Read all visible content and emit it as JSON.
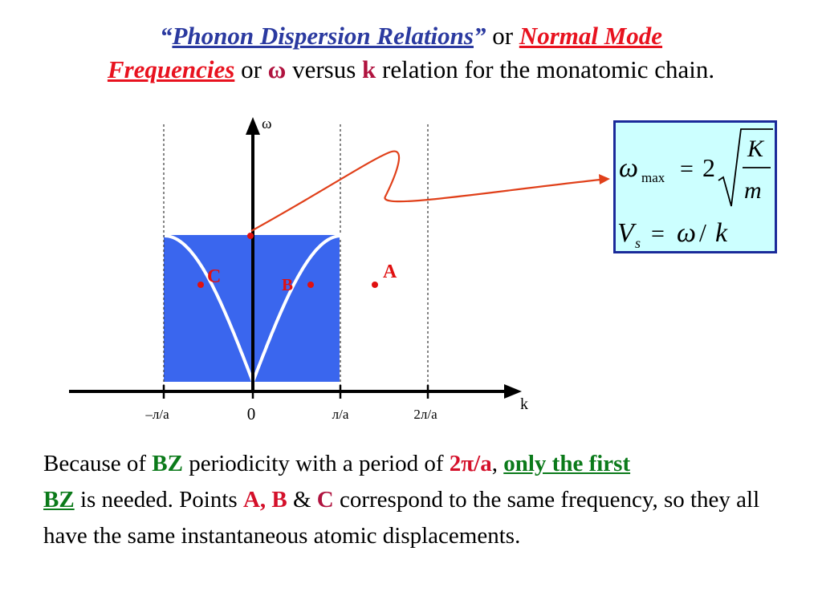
{
  "title": {
    "open_quote": "“",
    "phrase1": "Phonon Dispersion Relations",
    "close_quote": "”",
    "or1": "or",
    "phrase2a": "Normal Mode",
    "phrase2b": "Frequencies",
    "or2": "or",
    "omega": "ω",
    "versus": "versus",
    "k": "k",
    "rest": "relation for the monatomic chain."
  },
  "diagram": {
    "y_axis_label": "ω",
    "x_axis_label": "k",
    "ticks": [
      "–л/a",
      "0",
      "л/a",
      "2л/a"
    ],
    "points": {
      "A": "A",
      "B": "B",
      "C": "C"
    },
    "colors": {
      "band": "#3a66ee",
      "curve": "#ffffff",
      "arrow": "#e0401a",
      "point": "#e01010",
      "point_label": "#e01010"
    }
  },
  "formula": {
    "omega": "ω",
    "max": "max",
    "eq1": "=",
    "two": "2",
    "K": "K",
    "m": "m",
    "V": "V",
    "s": "s",
    "eq2": "=",
    "omega2": "ω",
    "slash": "/",
    "k": "k"
  },
  "paragraph": {
    "s1": "Because of",
    "bz1": "BZ",
    "s2": "periodicity with a period of",
    "period": "2π/a",
    "comma": ",",
    "only_first": "only the first",
    "bz2": "BZ",
    "s3": "is needed. Points",
    "ab": "A, B",
    "amp": "&",
    "c": "C",
    "s4": "correspond to the same frequency, so they all have the same instantaneous atomic displacements."
  }
}
